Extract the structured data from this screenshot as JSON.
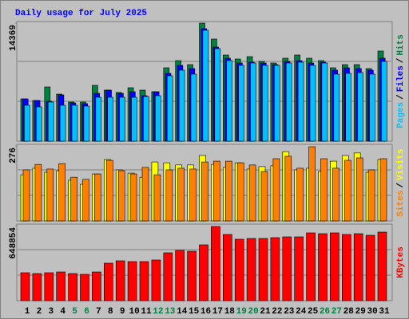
{
  "chart_data": [
    {
      "type": "bar",
      "title": "Daily usage for July 2025",
      "ylim": [
        0,
        14369
      ],
      "yticks": [
        14369
      ],
      "separator": "/",
      "series": [
        {
          "name": "Hits",
          "color": "#008040",
          "values": [
            5146,
            4952,
            6603,
            5729,
            4758,
            4758,
            6797,
            6214,
            5923,
            6506,
            6214,
            6020,
            8933,
            9807,
            9322,
            14369,
            12429,
            10487,
            10001,
            10293,
            9710,
            9516,
            10098,
            10487,
            10098,
            9807,
            8933,
            9322,
            9322,
            8836,
            10972
          ]
        },
        {
          "name": "Files",
          "color": "#0000ff",
          "values": [
            5146,
            4952,
            4855,
            5632,
            4661,
            4564,
            5826,
            6214,
            5826,
            6020,
            5535,
            6020,
            8254,
            9225,
            8836,
            13691,
            11458,
            10098,
            9516,
            9613,
            9516,
            9322,
            9710,
            9807,
            9516,
            9613,
            8642,
            8933,
            8836,
            8642,
            10098
          ]
        },
        {
          "name": "Pages",
          "color": "#00c0ff",
          "values": [
            4370,
            4175,
            4758,
            4370,
            4370,
            4272,
            5341,
            5341,
            5341,
            5341,
            5438,
            5535,
            7962,
            8642,
            8156,
            13497,
            11264,
            9807,
            9225,
            9516,
            9225,
            9225,
            9516,
            9613,
            9225,
            9516,
            8156,
            8254,
            8351,
            8156,
            9710
          ]
        }
      ]
    },
    {
      "type": "bar",
      "ylim": [
        0,
        276
      ],
      "yticks": [
        276
      ],
      "separator": "/",
      "series": [
        {
          "name": "Visits",
          "color": "#ffff00",
          "values": [
            170,
            194,
            179,
            185,
            150,
            135,
            173,
            226,
            188,
            176,
            161,
            217,
            214,
            206,
            206,
            241,
            208,
            197,
            214,
            191,
            200,
            203,
            255,
            188,
            194,
            182,
            220,
            241,
            250,
            179,
            226
          ]
        },
        {
          "name": "Sites",
          "color": "#ff8000",
          "values": [
            188,
            208,
            191,
            211,
            161,
            153,
            173,
            223,
            185,
            173,
            197,
            170,
            188,
            194,
            191,
            217,
            220,
            220,
            214,
            206,
            182,
            229,
            238,
            194,
            273,
            229,
            194,
            223,
            232,
            188,
            229
          ]
        }
      ]
    },
    {
      "type": "bar",
      "ylim": [
        0,
        648854
      ],
      "yticks": [
        648854
      ],
      "series": [
        {
          "name": "KBytes",
          "color": "#ff0000",
          "values": [
            241605,
            234702,
            241605,
            248508,
            234702,
            227799,
            248508,
            324441,
            345150,
            338247,
            338247,
            352053,
            414180,
            434889,
            427986,
            483210,
            641979,
            572949,
            531531,
            538434,
            538434,
            545337,
            552240,
            552240,
            586755,
            579852,
            586755,
            572949,
            579852,
            566046,
            593658
          ]
        }
      ],
      "categories": [
        "1",
        "2",
        "3",
        "4",
        "5",
        "6",
        "7",
        "8",
        "9",
        "10",
        "11",
        "12",
        "13",
        "14",
        "15",
        "16",
        "17",
        "18",
        "19",
        "20",
        "21",
        "22",
        "23",
        "24",
        "25",
        "26",
        "27",
        "28",
        "29",
        "30",
        "31"
      ],
      "category_colors": [
        "#000000",
        "#000000",
        "#000000",
        "#000000",
        "#008040",
        "#008040",
        "#000000",
        "#000000",
        "#000000",
        "#000000",
        "#000000",
        "#008040",
        "#008040",
        "#000000",
        "#000000",
        "#000000",
        "#000000",
        "#000000",
        "#008040",
        "#008040",
        "#000000",
        "#000000",
        "#000000",
        "#000000",
        "#000000",
        "#008040",
        "#008040",
        "#000000",
        "#000000",
        "#000000",
        "#000000"
      ]
    }
  ]
}
